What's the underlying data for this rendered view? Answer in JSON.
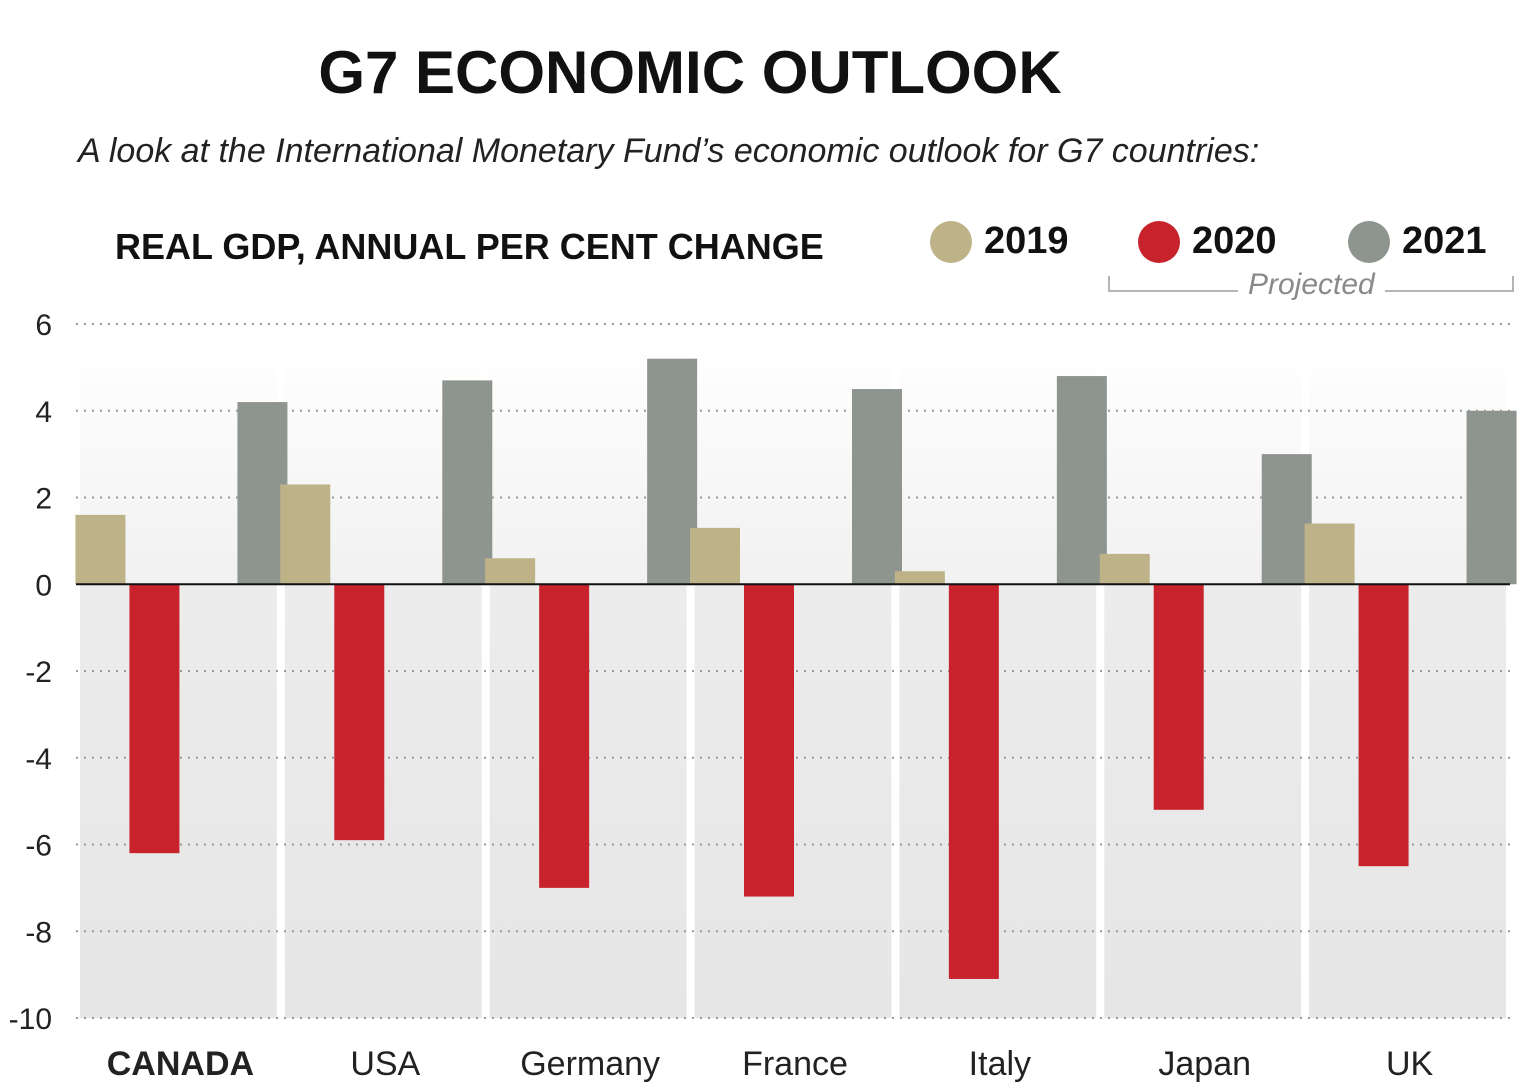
{
  "title": "G7 ECONOMIC OUTLOOK",
  "subtitle": "A look at the International Monetary Fund’s economic outlook for G7 countries:",
  "legend": {
    "items": [
      {
        "label": "2019",
        "color": "#bdb288"
      },
      {
        "label": "2020",
        "color": "#c8232c"
      },
      {
        "label": "2021",
        "color": "#8e948e"
      }
    ],
    "projected_label": "Projected"
  },
  "chart_data": {
    "type": "bar",
    "title": "REAL GDP, ANNUAL PER CENT CHANGE",
    "xlabel": "",
    "ylabel": "",
    "categories": [
      "CANADA",
      "USA",
      "Germany",
      "France",
      "Italy",
      "Japan",
      "UK"
    ],
    "highlighted_category": "CANADA",
    "series": [
      {
        "name": "2019",
        "color": "#bdb288",
        "values": [
          1.6,
          2.3,
          0.6,
          1.3,
          0.3,
          0.7,
          1.4
        ]
      },
      {
        "name": "2020",
        "color": "#c8232c",
        "values": [
          -6.2,
          -5.9,
          -7.0,
          -7.2,
          -9.1,
          -5.2,
          -6.5
        ]
      },
      {
        "name": "2021",
        "color": "#8e948e",
        "values": [
          4.2,
          4.7,
          5.2,
          4.5,
          4.8,
          3.0,
          4.0
        ]
      }
    ],
    "ylim": [
      -10,
      6
    ],
    "yticks": [
      "6",
      "4",
      "2",
      "0",
      "-2",
      "-4",
      "-6",
      "-8",
      "-10"
    ],
    "grid": true,
    "legend_position": "top-right"
  }
}
